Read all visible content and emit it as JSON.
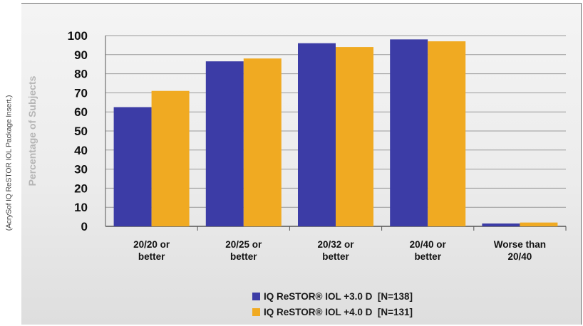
{
  "side_credit": "(AcrySof IQ ReSTOR IOL Package Insert.)",
  "colors": {
    "series1": "#3c3ca6",
    "series2": "#f0aa22",
    "gridline": "#9a9a9a",
    "axis": "#555555"
  },
  "chart_data": {
    "type": "bar",
    "title": "",
    "xlabel": "",
    "ylabel": "Percentage of Subjects",
    "ylim": [
      0,
      100
    ],
    "yticks": [
      0,
      10,
      20,
      30,
      40,
      50,
      60,
      70,
      80,
      90,
      100
    ],
    "grid": true,
    "legend_position": "bottom",
    "categories": [
      [
        "20/20 or",
        "better"
      ],
      [
        "20/25 or",
        "better"
      ],
      [
        "20/32 or",
        "better"
      ],
      [
        "20/40 or",
        "better"
      ],
      [
        "Worse than",
        "20/40"
      ]
    ],
    "series": [
      {
        "name": "IQ ReSTOR® IOL +3.0 D  [N=138]",
        "values": [
          62.5,
          86.5,
          96,
          98,
          1.5
        ]
      },
      {
        "name": "IQ ReSTOR® IOL +4.0 D  [N=131]",
        "values": [
          71,
          88,
          94,
          97,
          2
        ]
      }
    ]
  }
}
